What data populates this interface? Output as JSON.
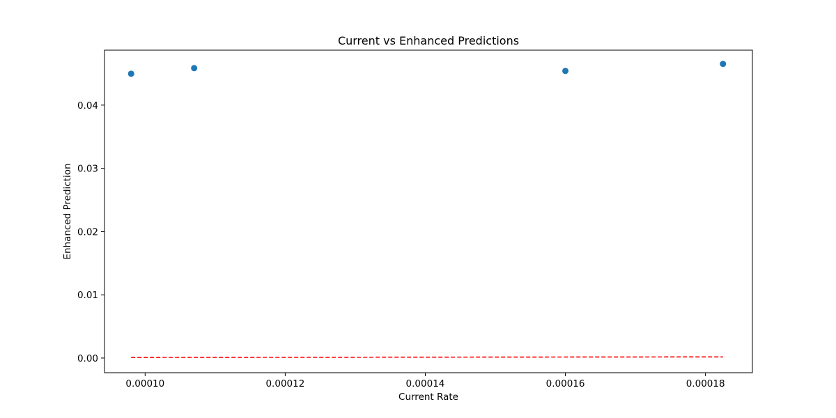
{
  "chart_data": {
    "type": "scatter",
    "title": "Current vs Enhanced Predictions",
    "xlabel": "Current Rate",
    "ylabel": "Enhanced Prediction",
    "xlim": [
      9.42e-05,
      0.0001867
    ],
    "ylim": [
      -0.00232,
      0.04869
    ],
    "xticks": [
      0.0001,
      0.00012,
      0.00014,
      0.00016,
      0.00018
    ],
    "xtick_labels": [
      "0.00010",
      "0.00012",
      "0.00014",
      "0.00016",
      "0.00018"
    ],
    "yticks": [
      0.0,
      0.01,
      0.02,
      0.03,
      0.04
    ],
    "ytick_labels": [
      "0.00",
      "0.01",
      "0.02",
      "0.03",
      "0.04"
    ],
    "grid": false,
    "series": [
      {
        "kind": "scatter",
        "color": "#1f77b4",
        "points": [
          {
            "x": 9.8e-05,
            "y": 0.04496
          },
          {
            "x": 0.000107,
            "y": 0.04585
          },
          {
            "x": 0.00016,
            "y": 0.0454
          },
          {
            "x": 0.0001825,
            "y": 0.04652
          }
        ]
      },
      {
        "kind": "line",
        "style": "dashed",
        "color": "#ff0000",
        "points": [
          {
            "x": 9.8e-05,
            "y": 9.8e-05
          },
          {
            "x": 0.0001825,
            "y": 0.0001825
          }
        ]
      }
    ]
  }
}
